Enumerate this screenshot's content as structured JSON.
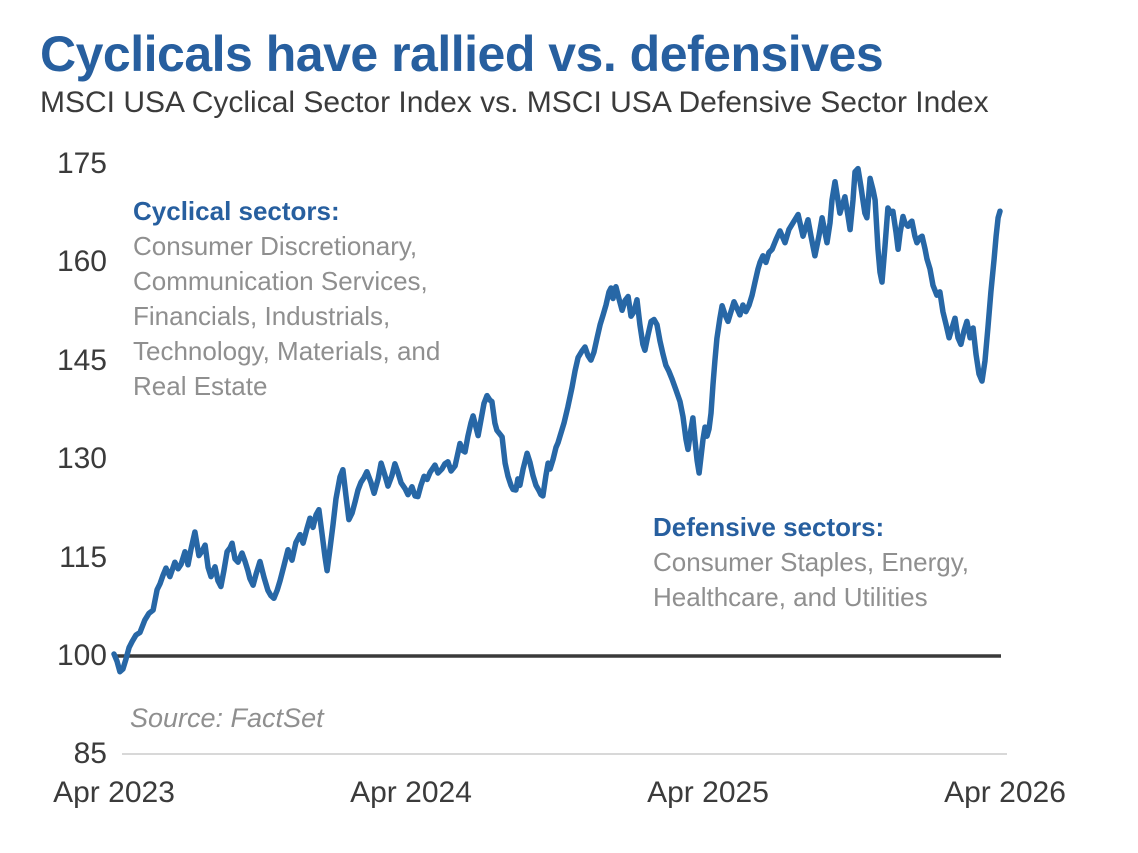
{
  "title": "Cyclicals have rallied vs. defensives",
  "subtitle": "MSCI USA Cyclical Sector Index vs. MSCI USA Defensive Sector Index",
  "source": "Source: FactSet",
  "colors": {
    "accent_blue": "#275F9F",
    "line_blue": "#2767A6",
    "text_dark": "#3B3B3B",
    "text_gray": "#8F8F8F",
    "baseline_dark": "#3A3A3A",
    "axis_light": "#D8D8D8"
  },
  "annotations": {
    "cyclical": {
      "heading": "Cyclical sectors:",
      "lines": [
        "Consumer Discretionary,",
        "Communication Services,",
        "Financials, Industrials,",
        "Technology, Materials, and",
        "Real Estate"
      ]
    },
    "defensive": {
      "heading": "Defensive sectors:",
      "lines": [
        "Consumer Staples, Energy,",
        "Healthcare, and Utilities"
      ]
    }
  },
  "chart_data": {
    "type": "line",
    "description": "Ratio index of MSCI USA Cyclical Sector Index vs. MSCI USA Defensive Sector Index, indexed to 100 at Apr 2023",
    "x_unit": "months since Apr 2023",
    "xlim": [
      0,
      36
    ],
    "ylim": [
      85,
      175
    ],
    "baseline_value": 100,
    "grid": false,
    "legend": "none",
    "y_ticks": [
      175,
      160,
      145,
      130,
      115,
      100,
      85
    ],
    "x_ticks": [
      {
        "label": "Apr 2023",
        "m": 0
      },
      {
        "label": "Apr 2024",
        "m": 12
      },
      {
        "label": "Apr 2025",
        "m": 24
      },
      {
        "label": "Apr 2026",
        "m": 36
      }
    ],
    "points": [
      [
        0,
        100.3
      ],
      [
        0.12,
        99.2
      ],
      [
        0.24,
        97.6
      ],
      [
        0.36,
        98
      ],
      [
        0.48,
        99.5
      ],
      [
        0.61,
        101.3
      ],
      [
        0.73,
        102.2
      ],
      [
        0.89,
        103.2
      ],
      [
        1.05,
        103.6
      ],
      [
        1.25,
        105.5
      ],
      [
        1.41,
        106.5
      ],
      [
        1.58,
        107
      ],
      [
        1.74,
        110.1
      ],
      [
        1.86,
        111
      ],
      [
        1.98,
        112.3
      ],
      [
        2.1,
        113.4
      ],
      [
        2.26,
        112.1
      ],
      [
        2.46,
        114.3
      ],
      [
        2.59,
        113.3
      ],
      [
        2.71,
        114
      ],
      [
        2.87,
        115.9
      ],
      [
        2.99,
        113.9
      ],
      [
        3.11,
        116.3
      ],
      [
        3.27,
        118.9
      ],
      [
        3.43,
        115.3
      ],
      [
        3.56,
        116
      ],
      [
        3.68,
        116.9
      ],
      [
        3.8,
        113.5
      ],
      [
        3.92,
        112.1
      ],
      [
        4.08,
        113.6
      ],
      [
        4.2,
        111.5
      ],
      [
        4.32,
        110.6
      ],
      [
        4.44,
        113
      ],
      [
        4.57,
        115.9
      ],
      [
        4.69,
        116.5
      ],
      [
        4.77,
        117.2
      ],
      [
        4.89,
        114.8
      ],
      [
        5.01,
        114.3
      ],
      [
        5.17,
        115.7
      ],
      [
        5.29,
        114.5
      ],
      [
        5.41,
        113
      ],
      [
        5.49,
        111.8
      ],
      [
        5.62,
        110.8
      ],
      [
        5.74,
        112.5
      ],
      [
        5.9,
        114.4
      ],
      [
        6.06,
        112
      ],
      [
        6.22,
        110
      ],
      [
        6.34,
        109.2
      ],
      [
        6.46,
        108.8
      ],
      [
        6.59,
        110
      ],
      [
        6.71,
        111.5
      ],
      [
        6.87,
        113.8
      ],
      [
        7.03,
        116.2
      ],
      [
        7.19,
        114.6
      ],
      [
        7.35,
        117.3
      ],
      [
        7.52,
        118.5
      ],
      [
        7.64,
        117.2
      ],
      [
        7.8,
        119.5
      ],
      [
        7.92,
        121
      ],
      [
        8.04,
        119.6
      ],
      [
        8.16,
        121.5
      ],
      [
        8.28,
        122.3
      ],
      [
        8.4,
        118.8
      ],
      [
        8.53,
        115
      ],
      [
        8.61,
        113
      ],
      [
        8.73,
        116.5
      ],
      [
        8.85,
        120
      ],
      [
        8.97,
        124
      ],
      [
        9.13,
        127.3
      ],
      [
        9.25,
        128.4
      ],
      [
        9.37,
        124.5
      ],
      [
        9.49,
        120.8
      ],
      [
        9.62,
        121.8
      ],
      [
        9.74,
        123.5
      ],
      [
        9.86,
        125.3
      ],
      [
        9.98,
        126.5
      ],
      [
        10.1,
        127.2
      ],
      [
        10.22,
        128.1
      ],
      [
        10.38,
        126.5
      ],
      [
        10.51,
        124.8
      ],
      [
        10.67,
        127
      ],
      [
        10.79,
        129.4
      ],
      [
        10.95,
        127.5
      ],
      [
        11.07,
        125.9
      ],
      [
        11.23,
        127.5
      ],
      [
        11.35,
        129.3
      ],
      [
        11.47,
        128
      ],
      [
        11.6,
        126.4
      ],
      [
        11.76,
        125.5
      ],
      [
        11.88,
        124.6
      ],
      [
        12.04,
        125.8
      ],
      [
        12.16,
        124.4
      ],
      [
        12.28,
        124.3
      ],
      [
        12.4,
        126
      ],
      [
        12.53,
        127.4
      ],
      [
        12.65,
        126.9
      ],
      [
        12.77,
        128
      ],
      [
        12.97,
        129.1
      ],
      [
        13.09,
        127.9
      ],
      [
        13.25,
        128.5
      ],
      [
        13.37,
        129.3
      ],
      [
        13.49,
        129.6
      ],
      [
        13.62,
        128.2
      ],
      [
        13.78,
        129
      ],
      [
        13.9,
        131
      ],
      [
        13.98,
        132.4
      ],
      [
        14.1,
        131.3
      ],
      [
        14.18,
        131.1
      ],
      [
        14.3,
        133.5
      ],
      [
        14.42,
        135.5
      ],
      [
        14.51,
        136.6
      ],
      [
        14.63,
        134.8
      ],
      [
        14.71,
        133.6
      ],
      [
        14.83,
        136
      ],
      [
        14.95,
        138.5
      ],
      [
        15.07,
        139.7
      ],
      [
        15.19,
        139
      ],
      [
        15.27,
        138.8
      ],
      [
        15.39,
        135.5
      ],
      [
        15.47,
        134.4
      ],
      [
        15.6,
        133.8
      ],
      [
        15.68,
        133.4
      ],
      [
        15.8,
        129.4
      ],
      [
        15.92,
        127.4
      ],
      [
        16.04,
        126
      ],
      [
        16.12,
        125.4
      ],
      [
        16.24,
        125.3
      ],
      [
        16.32,
        127
      ],
      [
        16.4,
        126
      ],
      [
        16.53,
        128.5
      ],
      [
        16.69,
        130.9
      ],
      [
        16.81,
        129.5
      ],
      [
        16.93,
        127.5
      ],
      [
        17.05,
        126
      ],
      [
        17.17,
        125.2
      ],
      [
        17.25,
        124.6
      ],
      [
        17.33,
        124.4
      ],
      [
        17.45,
        127.5
      ],
      [
        17.54,
        129.4
      ],
      [
        17.62,
        128.5
      ],
      [
        17.74,
        130
      ],
      [
        17.86,
        131.8
      ],
      [
        17.94,
        132.5
      ],
      [
        18.02,
        133.5
      ],
      [
        18.18,
        135.5
      ],
      [
        18.34,
        138
      ],
      [
        18.51,
        141
      ],
      [
        18.63,
        143.5
      ],
      [
        18.75,
        145.5
      ],
      [
        18.91,
        146.5
      ],
      [
        19.03,
        147.1
      ],
      [
        19.15,
        145.8
      ],
      [
        19.27,
        145.1
      ],
      [
        19.39,
        146.3
      ],
      [
        19.52,
        148.5
      ],
      [
        19.64,
        150.5
      ],
      [
        19.76,
        152
      ],
      [
        19.88,
        153.5
      ],
      [
        20,
        155.5
      ],
      [
        20.08,
        156.1
      ],
      [
        20.16,
        154.5
      ],
      [
        20.28,
        156.3
      ],
      [
        20.4,
        154.5
      ],
      [
        20.53,
        152.7
      ],
      [
        20.65,
        154.2
      ],
      [
        20.77,
        154.8
      ],
      [
        20.89,
        151.8
      ],
      [
        21.01,
        152.5
      ],
      [
        21.13,
        154.3
      ],
      [
        21.25,
        150.5
      ],
      [
        21.37,
        147.5
      ],
      [
        21.45,
        146.6
      ],
      [
        21.58,
        149
      ],
      [
        21.7,
        151
      ],
      [
        21.82,
        151.3
      ],
      [
        21.94,
        150.5
      ],
      [
        22.06,
        148
      ],
      [
        22.18,
        146
      ],
      [
        22.3,
        144.3
      ],
      [
        22.42,
        143.4
      ],
      [
        22.55,
        142.2
      ],
      [
        22.71,
        140.5
      ],
      [
        22.87,
        138.8
      ],
      [
        22.99,
        136.5
      ],
      [
        23.11,
        133
      ],
      [
        23.19,
        131.5
      ],
      [
        23.31,
        134.5
      ],
      [
        23.39,
        136.3
      ],
      [
        23.47,
        133
      ],
      [
        23.56,
        129.8
      ],
      [
        23.64,
        127.9
      ],
      [
        23.72,
        130.5
      ],
      [
        23.8,
        133
      ],
      [
        23.88,
        134.9
      ],
      [
        23.96,
        133.5
      ],
      [
        24.04,
        134.6
      ],
      [
        24.12,
        137
      ],
      [
        24.2,
        141.4
      ],
      [
        24.28,
        145
      ],
      [
        24.36,
        148.4
      ],
      [
        24.48,
        151.5
      ],
      [
        24.57,
        153.4
      ],
      [
        24.69,
        152
      ],
      [
        24.81,
        151
      ],
      [
        24.93,
        152.5
      ],
      [
        25.05,
        154
      ],
      [
        25.17,
        153
      ],
      [
        25.29,
        152
      ],
      [
        25.41,
        153.5
      ],
      [
        25.53,
        152.5
      ],
      [
        25.66,
        153.5
      ],
      [
        25.78,
        155
      ],
      [
        25.9,
        157
      ],
      [
        26.02,
        159
      ],
      [
        26.1,
        160
      ],
      [
        26.22,
        161
      ],
      [
        26.34,
        160
      ],
      [
        26.46,
        161.5
      ],
      [
        26.59,
        162
      ],
      [
        26.75,
        163.5
      ],
      [
        26.91,
        164.8
      ],
      [
        27.11,
        163
      ],
      [
        27.27,
        165
      ],
      [
        27.43,
        166
      ],
      [
        27.64,
        167.3
      ],
      [
        27.84,
        164
      ],
      [
        28.04,
        166.5
      ],
      [
        28.16,
        164
      ],
      [
        28.32,
        161
      ],
      [
        28.48,
        164
      ],
      [
        28.61,
        166.8
      ],
      [
        28.81,
        163
      ],
      [
        28.93,
        166
      ],
      [
        29.01,
        169.5
      ],
      [
        29.13,
        172.3
      ],
      [
        29.25,
        169.5
      ],
      [
        29.33,
        167.5
      ],
      [
        29.45,
        169
      ],
      [
        29.53,
        170
      ],
      [
        29.66,
        167
      ],
      [
        29.74,
        165
      ],
      [
        29.86,
        169.5
      ],
      [
        29.94,
        173.8
      ],
      [
        30.06,
        174.3
      ],
      [
        30.18,
        171.5
      ],
      [
        30.26,
        169.5
      ],
      [
        30.34,
        167.5
      ],
      [
        30.42,
        166.8
      ],
      [
        30.55,
        172.8
      ],
      [
        30.67,
        171
      ],
      [
        30.75,
        169.5
      ],
      [
        30.87,
        162
      ],
      [
        30.95,
        158.5
      ],
      [
        31.03,
        157
      ],
      [
        31.15,
        162.5
      ],
      [
        31.27,
        168.3
      ],
      [
        31.39,
        167.5
      ],
      [
        31.47,
        167.8
      ],
      [
        31.6,
        164.5
      ],
      [
        31.68,
        162
      ],
      [
        31.76,
        164.5
      ],
      [
        31.88,
        167
      ],
      [
        31.96,
        166
      ],
      [
        32.08,
        165.5
      ],
      [
        32.16,
        166
      ],
      [
        32.24,
        166.3
      ],
      [
        32.36,
        164
      ],
      [
        32.44,
        163
      ],
      [
        32.57,
        163.8
      ],
      [
        32.65,
        164
      ],
      [
        32.77,
        162
      ],
      [
        32.85,
        160.5
      ],
      [
        32.97,
        159
      ],
      [
        33.09,
        156.5
      ],
      [
        33.25,
        155
      ],
      [
        33.37,
        155.5
      ],
      [
        33.49,
        152.5
      ],
      [
        33.62,
        150.5
      ],
      [
        33.74,
        148.5
      ],
      [
        33.86,
        150
      ],
      [
        33.98,
        151.5
      ],
      [
        34.1,
        148.5
      ],
      [
        34.22,
        147.5
      ],
      [
        34.34,
        149.5
      ],
      [
        34.46,
        151
      ],
      [
        34.59,
        148.5
      ],
      [
        34.71,
        150
      ],
      [
        34.83,
        146
      ],
      [
        34.95,
        143
      ],
      [
        35.07,
        141.9
      ],
      [
        35.19,
        145
      ],
      [
        35.31,
        150
      ],
      [
        35.43,
        155.5
      ],
      [
        35.56,
        160.5
      ],
      [
        35.64,
        164
      ],
      [
        35.72,
        166.8
      ],
      [
        35.8,
        167.8
      ]
    ]
  }
}
